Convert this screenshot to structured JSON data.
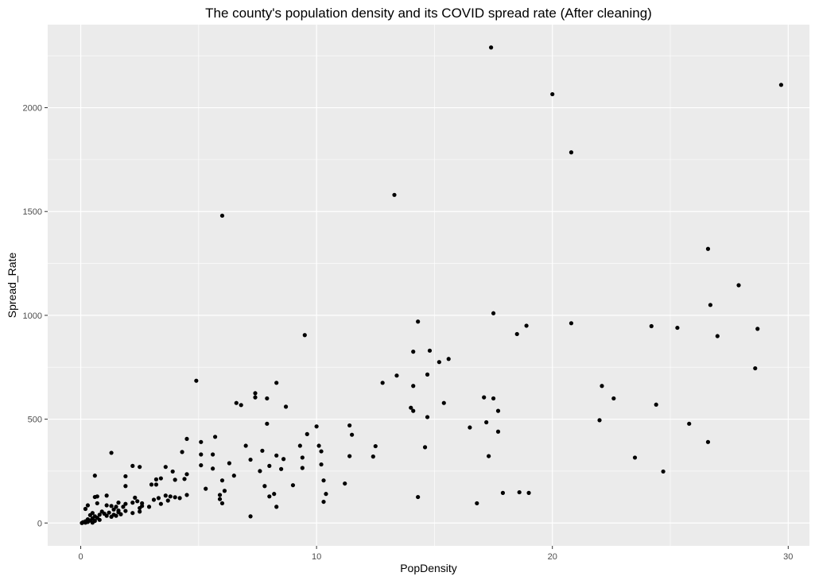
{
  "chart_data": {
    "type": "scatter",
    "title": "The county's population density and its COVID spread rate (After cleaning)",
    "xlabel": "PopDensity",
    "ylabel": "Spread_Rate",
    "xlim": [
      -1.4,
      30.9
    ],
    "ylim": [
      -110,
      2400
    ],
    "x_ticks": [
      0,
      10,
      20,
      30
    ],
    "x_tick_labels": [
      "0",
      "10",
      "20",
      "30"
    ],
    "y_ticks": [
      0,
      500,
      1000,
      1500,
      2000
    ],
    "y_tick_labels": [
      "0",
      "500",
      "1000",
      "1500",
      "2000"
    ],
    "grid": true,
    "panel_background": "#ebebeb",
    "grid_color": "#ffffff",
    "point_color": "#000000",
    "points": [
      [
        17.4,
        2290
      ],
      [
        29.7,
        2110
      ],
      [
        20.0,
        2065
      ],
      [
        20.8,
        1785
      ],
      [
        13.3,
        1580
      ],
      [
        6.0,
        1480
      ],
      [
        26.6,
        1320
      ],
      [
        27.9,
        1145
      ],
      [
        26.7,
        1050
      ],
      [
        17.5,
        1010
      ],
      [
        14.3,
        970
      ],
      [
        18.9,
        950
      ],
      [
        24.2,
        948
      ],
      [
        25.3,
        940
      ],
      [
        20.8,
        962
      ],
      [
        28.7,
        935
      ],
      [
        18.5,
        910
      ],
      [
        27.0,
        900
      ],
      [
        9.5,
        905
      ],
      [
        14.8,
        830
      ],
      [
        14.1,
        825
      ],
      [
        15.6,
        790
      ],
      [
        15.2,
        775
      ],
      [
        28.6,
        745
      ],
      [
        13.4,
        710
      ],
      [
        14.7,
        715
      ],
      [
        4.9,
        685
      ],
      [
        12.8,
        675
      ],
      [
        8.3,
        675
      ],
      [
        22.1,
        660
      ],
      [
        14.1,
        660
      ],
      [
        7.4,
        625
      ],
      [
        7.4,
        605
      ],
      [
        7.9,
        600
      ],
      [
        17.1,
        605
      ],
      [
        17.5,
        600
      ],
      [
        22.6,
        600
      ],
      [
        6.6,
        578
      ],
      [
        6.8,
        568
      ],
      [
        15.4,
        578
      ],
      [
        24.4,
        570
      ],
      [
        8.7,
        560
      ],
      [
        14.0,
        555
      ],
      [
        14.1,
        540
      ],
      [
        17.7,
        540
      ],
      [
        14.7,
        510
      ],
      [
        22.0,
        495
      ],
      [
        17.2,
        485
      ],
      [
        25.8,
        478
      ],
      [
        7.9,
        478
      ],
      [
        10.0,
        465
      ],
      [
        16.5,
        460
      ],
      [
        17.7,
        440
      ],
      [
        11.4,
        470
      ],
      [
        11.5,
        425
      ],
      [
        9.6,
        428
      ],
      [
        4.5,
        405
      ],
      [
        5.7,
        415
      ],
      [
        26.6,
        390
      ],
      [
        5.1,
        390
      ],
      [
        10.1,
        372
      ],
      [
        9.3,
        372
      ],
      [
        7.0,
        372
      ],
      [
        12.5,
        370
      ],
      [
        14.6,
        365
      ],
      [
        10.2,
        345
      ],
      [
        4.3,
        342
      ],
      [
        1.3,
        338
      ],
      [
        7.7,
        348
      ],
      [
        5.1,
        330
      ],
      [
        5.6,
        330
      ],
      [
        8.3,
        325
      ],
      [
        17.3,
        322
      ],
      [
        11.4,
        322
      ],
      [
        12.4,
        320
      ],
      [
        23.5,
        315
      ],
      [
        9.4,
        315
      ],
      [
        8.6,
        308
      ],
      [
        7.2,
        305
      ],
      [
        6.3,
        288
      ],
      [
        10.2,
        282
      ],
      [
        5.1,
        278
      ],
      [
        8.0,
        275
      ],
      [
        2.2,
        275
      ],
      [
        2.5,
        270
      ],
      [
        3.6,
        270
      ],
      [
        5.6,
        262
      ],
      [
        9.4,
        265
      ],
      [
        8.5,
        260
      ],
      [
        3.9,
        248
      ],
      [
        7.6,
        250
      ],
      [
        24.7,
        248
      ],
      [
        4.5,
        235
      ],
      [
        0.6,
        228
      ],
      [
        6.5,
        228
      ],
      [
        1.9,
        225
      ],
      [
        6.0,
        205
      ],
      [
        10.3,
        205
      ],
      [
        4.0,
        208
      ],
      [
        3.2,
        210
      ],
      [
        3.4,
        215
      ],
      [
        4.4,
        212
      ],
      [
        11.2,
        190
      ],
      [
        9.0,
        182
      ],
      [
        3.0,
        185
      ],
      [
        3.2,
        185
      ],
      [
        7.8,
        178
      ],
      [
        1.9,
        178
      ],
      [
        5.3,
        165
      ],
      [
        6.1,
        155
      ],
      [
        10.4,
        140
      ],
      [
        8.2,
        140
      ],
      [
        4.5,
        135
      ],
      [
        5.9,
        135
      ],
      [
        3.6,
        132
      ],
      [
        1.1,
        132
      ],
      [
        0.7,
        128
      ],
      [
        0.6,
        125
      ],
      [
        3.8,
        128
      ],
      [
        4.0,
        124
      ],
      [
        8.0,
        128
      ],
      [
        3.3,
        120
      ],
      [
        2.3,
        122
      ],
      [
        5.9,
        115
      ],
      [
        3.1,
        112
      ],
      [
        4.2,
        120
      ],
      [
        14.3,
        125
      ],
      [
        17.9,
        145
      ],
      [
        18.6,
        148
      ],
      [
        19.0,
        145
      ],
      [
        3.7,
        108
      ],
      [
        2.4,
        105
      ],
      [
        2.2,
        98
      ],
      [
        2.6,
        95
      ],
      [
        1.6,
        98
      ],
      [
        1.9,
        92
      ],
      [
        0.7,
        95
      ],
      [
        6.0,
        95
      ],
      [
        3.4,
        92
      ],
      [
        10.3,
        102
      ],
      [
        1.1,
        85
      ],
      [
        0.3,
        85
      ],
      [
        1.3,
        82
      ],
      [
        2.6,
        82
      ],
      [
        1.8,
        78
      ],
      [
        1.5,
        78
      ],
      [
        2.9,
        78
      ],
      [
        8.3,
        78
      ],
      [
        16.8,
        95
      ],
      [
        2.5,
        72
      ],
      [
        0.2,
        68
      ],
      [
        1.4,
        65
      ],
      [
        1.6,
        60
      ],
      [
        0.9,
        55
      ],
      [
        2.5,
        55
      ],
      [
        1.9,
        58
      ],
      [
        0.5,
        48
      ],
      [
        1.2,
        50
      ],
      [
        1.6,
        52
      ],
      [
        1.0,
        45
      ],
      [
        2.2,
        48
      ],
      [
        0.8,
        40
      ],
      [
        1.4,
        40
      ],
      [
        0.4,
        38
      ],
      [
        1.7,
        42
      ],
      [
        1.1,
        35
      ],
      [
        1.5,
        35
      ],
      [
        0.6,
        32
      ],
      [
        1.3,
        30
      ],
      [
        7.2,
        32
      ],
      [
        0.7,
        25
      ],
      [
        0.5,
        22
      ],
      [
        0.3,
        18
      ],
      [
        0.8,
        15
      ],
      [
        0.4,
        12
      ],
      [
        0.6,
        10
      ],
      [
        0.2,
        8
      ],
      [
        0.3,
        5
      ],
      [
        0.1,
        4
      ],
      [
        0.2,
        2
      ],
      [
        0.5,
        2
      ],
      [
        0.05,
        0
      ]
    ]
  }
}
